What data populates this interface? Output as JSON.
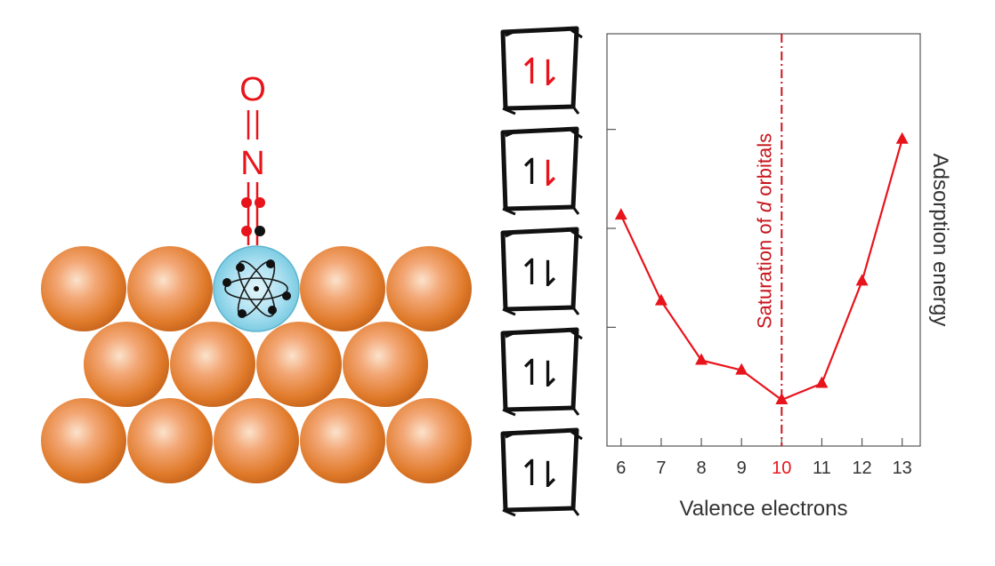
{
  "molecule": {
    "oxygen": "O",
    "nitrogen": "N"
  },
  "orbital_boxes": [
    {
      "up": "1",
      "down": "⇂",
      "up_color": "#e8141c",
      "down_color": "#e8141c"
    },
    {
      "up": "1",
      "down": "⇂",
      "up_color": "#111111",
      "down_color": "#e8141c"
    },
    {
      "up": "1",
      "down": "⇂",
      "up_color": "#111111",
      "down_color": "#111111"
    },
    {
      "up": "1",
      "down": "⇂",
      "up_color": "#111111",
      "down_color": "#111111"
    },
    {
      "up": "1",
      "down": "⇂",
      "up_color": "#111111",
      "down_color": "#111111"
    }
  ],
  "colors": {
    "accent_red": "#e8141c",
    "copper": "#e07a2a",
    "metal_atom": "#8fd3e6",
    "axis": "#333333"
  },
  "chart_data": {
    "type": "line",
    "x": [
      6,
      7,
      8,
      9,
      10,
      11,
      12,
      13
    ],
    "series": [
      {
        "values": [
          0.7,
          0.44,
          0.26,
          0.23,
          0.14,
          0.19,
          0.5,
          0.93
        ],
        "marker": "triangle",
        "color": "#e8141c"
      }
    ],
    "xlabel": "Valence electrons",
    "ylabel": "Adsorption energy",
    "xlim": [
      5.65,
      13.45
    ],
    "ylim": [
      0.0,
      1.25
    ],
    "x_ticks": [
      "6",
      "7",
      "8",
      "9",
      "10",
      "11",
      "12",
      "13"
    ],
    "highlight_tick": "10",
    "y_ticks_labeled": false,
    "y_tick_positions": [
      0.36,
      0.66,
      0.96
    ],
    "vline": {
      "x": 10,
      "label_prefix": "Saturation of ",
      "label_italic": "d",
      "label_suffix": " orbitals",
      "style": "dash-dot"
    },
    "grid": false
  }
}
